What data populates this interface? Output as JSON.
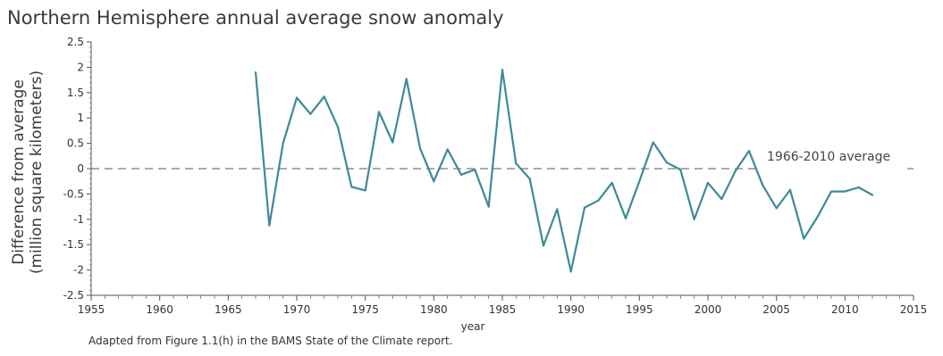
{
  "chart_data": {
    "type": "line",
    "title": "Northern Hemisphere annual average snow anomaly",
    "xlabel": "year",
    "ylabel_line1": "Difference from average",
    "ylabel_line2": "(million square kilometers)",
    "xlim": [
      1955,
      2015
    ],
    "ylim": [
      -2.5,
      2.5
    ],
    "x_ticks": [
      1955,
      1960,
      1965,
      1970,
      1975,
      1980,
      1985,
      1990,
      1995,
      2000,
      2005,
      2010,
      2015
    ],
    "y_ticks": [
      2.5,
      2,
      1.5,
      1,
      0.5,
      0,
      -0.5,
      -1,
      -1.5,
      -2,
      -2.5
    ],
    "grid": false,
    "reference_line": {
      "y": 0,
      "label": "1966-2010 average",
      "style": "dashed"
    },
    "series": [
      {
        "color": "#3d8a97",
        "x": [
          1967,
          1968,
          1969,
          1970,
          1971,
          1972,
          1973,
          1974,
          1975,
          1976,
          1977,
          1978,
          1979,
          1980,
          1981,
          1982,
          1983,
          1984,
          1985,
          1986,
          1987,
          1988,
          1989,
          1990,
          1991,
          1992,
          1993,
          1994,
          1995,
          1996,
          1997,
          1998,
          1999,
          2000,
          2001,
          2002,
          2003,
          2004,
          2005,
          2006,
          2007,
          2008,
          2009,
          2010,
          2011,
          2012
        ],
        "y": [
          1.9,
          -1.12,
          0.5,
          1.4,
          1.08,
          1.42,
          0.82,
          -0.36,
          -0.43,
          1.12,
          0.52,
          1.77,
          0.4,
          -0.25,
          0.38,
          -0.12,
          -0.02,
          -0.75,
          1.95,
          0.1,
          -0.2,
          -1.52,
          -0.8,
          -2.03,
          -0.77,
          -0.63,
          -0.28,
          -0.98,
          -0.25,
          0.52,
          0.12,
          -0.02,
          -1.0,
          -0.28,
          -0.6,
          -0.05,
          0.35,
          -0.33,
          -0.78,
          -0.42,
          -1.38,
          -0.95,
          -0.45,
          -0.45,
          -0.37,
          -0.52
        ]
      }
    ],
    "footnote": "Adapted from Figure 1.1(h) in the BAMS State of the Climate report.",
    "colors": {
      "line": "#3d8a97",
      "reference": "#aaaaaa",
      "axis": "#555555",
      "text": "#3a3a3a"
    }
  }
}
